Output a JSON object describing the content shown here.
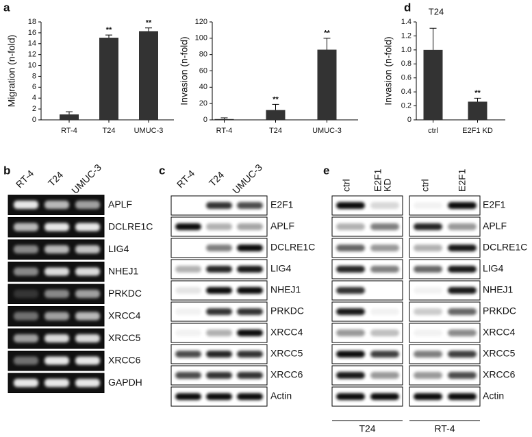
{
  "chart_data": [
    {
      "type": "bar",
      "y_label": "Migration (n-fold)",
      "categories": [
        "RT-4",
        "T24",
        "UMUC-3"
      ],
      "values": [
        1.0,
        15.1,
        16.3
      ],
      "error": [
        0.5,
        0.5,
        0.6
      ],
      "annotations": [
        null,
        "**",
        "**"
      ],
      "color": "#333333",
      "ylim": [
        0,
        18
      ],
      "yticks": [
        0,
        2,
        4,
        6,
        8,
        10,
        12,
        14,
        16,
        18
      ]
    },
    {
      "type": "bar",
      "y_label": "Invasion (n-fold)",
      "categories": [
        "RT-4",
        "T24",
        "UMUC-3"
      ],
      "values": [
        1,
        12,
        86
      ],
      "error": [
        1.5,
        7,
        14
      ],
      "annotations": [
        null,
        "**",
        "**"
      ],
      "color": "#333333",
      "ylim": [
        0,
        120
      ],
      "yticks": [
        0,
        20,
        40,
        60,
        80,
        100,
        120
      ]
    },
    {
      "type": "bar",
      "title": "T24",
      "y_label": "Invasion (n-fold)",
      "categories": [
        "ctrl",
        "E2F1 KD"
      ],
      "values": [
        1.0,
        0.26
      ],
      "error": [
        0.31,
        0.05
      ],
      "annotations": [
        null,
        "**"
      ],
      "color": "#333333",
      "ylim": [
        0,
        1.4
      ],
      "yticks": [
        0,
        0.2,
        0.4,
        0.6,
        0.8,
        {
          "value": 1,
          "label": "1.0"
        },
        1.2,
        1.4
      ]
    }
  ],
  "panel_letters": [
    "a",
    "b",
    "c",
    "d",
    "e"
  ],
  "gel_b": {
    "lanes": [
      "RT-4",
      "T24",
      "UMUC-3"
    ],
    "rows": [
      "APLF",
      "DCLRE1C",
      "LIG4",
      "NHEJ1",
      "PRKDC",
      "XRCC4",
      "XRCC5",
      "XRCC6",
      "GAPDH"
    ]
  },
  "blot_c": {
    "lanes": [
      "RT-4",
      "T24",
      "UMUC-3"
    ],
    "rows": [
      "E2F1",
      "APLF",
      "DCLRE1C",
      "LIG4",
      "NHEJ1",
      "PRKDC",
      "XRCC4",
      "XRCC5",
      "XRCC6",
      "Actin"
    ]
  },
  "blot_e": {
    "lanes": [
      [
        "ctrl"
      ],
      [
        "E2F1",
        "KD"
      ],
      [
        "ctrl"
      ],
      [
        "E2F1"
      ]
    ],
    "groups": [
      "T24",
      "RT-4"
    ],
    "rows": [
      "E2F1",
      "APLF",
      "DCLRE1C",
      "LIG4",
      "NHEJ1",
      "PRKDC",
      "XRCC4",
      "XRCC5",
      "XRCC6",
      "Actin"
    ]
  }
}
